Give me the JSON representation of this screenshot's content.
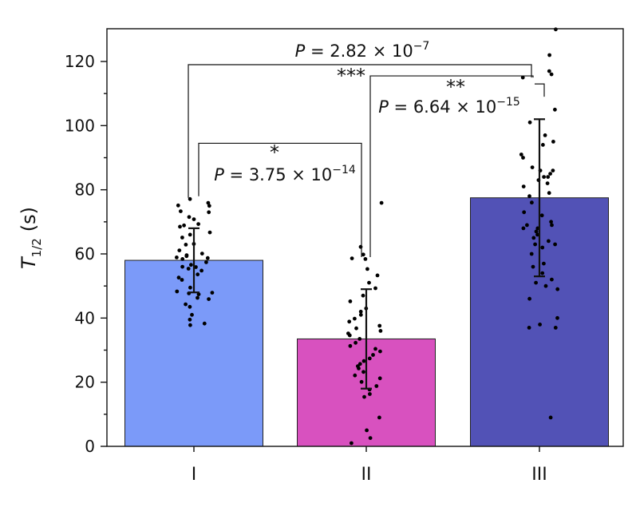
{
  "chart_data": {
    "type": "bar",
    "categories": [
      "I",
      "II",
      "III"
    ],
    "ylabel_main": "T",
    "ylabel_sub": "1/2",
    "ylabel_unit": "(s)",
    "ylim": [
      0,
      130
    ],
    "yticks": [
      0,
      20,
      40,
      60,
      80,
      100,
      120
    ],
    "yticks_minor": [
      10,
      30,
      50,
      70,
      90,
      110
    ],
    "grid": false,
    "legend": "none",
    "colors": [
      "#7b9af9",
      "#d851bf",
      "#5252b6"
    ],
    "bars": [
      {
        "category": "I",
        "mean": 58,
        "err_low": 48,
        "err_high": 68
      },
      {
        "category": "II",
        "mean": 33.5,
        "err_low": 18,
        "err_high": 49
      },
      {
        "category": "III",
        "mean": 77.5,
        "err_low": 53,
        "err_high": 102
      }
    ],
    "points": [
      [
        75.9,
        75.0,
        75.1,
        77.1,
        73.0,
        73.3,
        71.5,
        70.8,
        69.3,
        68.9,
        68.5,
        66.7,
        66.0,
        65.1,
        63.1,
        62.9,
        61.1,
        60.1,
        59.6,
        59.3,
        58.9,
        58.7,
        58.4,
        57.4,
        56.6,
        56.0,
        55.9,
        55.4,
        54.8,
        53.6,
        52.6,
        51.9,
        49.5,
        48.3,
        47.9,
        47.7,
        47.4,
        46.3,
        45.9,
        44.3,
        43.5,
        41.0,
        39.5,
        38.3,
        37.8
      ],
      [
        75.9,
        62.2,
        59.8,
        58.6,
        58.4,
        55.3,
        53.3,
        51.0,
        49.3,
        47.0,
        45.2,
        43.0,
        42.0,
        41.0,
        39.8,
        38.9,
        37.6,
        36.8,
        36.0,
        35.2,
        34.6,
        33.5,
        32.3,
        31.3,
        30.4,
        29.6,
        28.5,
        27.4,
        26.6,
        25.7,
        25.0,
        24.3,
        23.2,
        22.1,
        21.2,
        20.1,
        18.8,
        17.7,
        16.3,
        15.4,
        9.0,
        5.0,
        2.6,
        1.0
      ],
      [
        130,
        122,
        117,
        116,
        115,
        105,
        101,
        97,
        95,
        94,
        91,
        90,
        87,
        86,
        86,
        85,
        84,
        84,
        83,
        82,
        81,
        79,
        78,
        76,
        73,
        72,
        70,
        69,
        69,
        68,
        68,
        67,
        66,
        65,
        64,
        63,
        63,
        62,
        60,
        57,
        56,
        54,
        52,
        51,
        50,
        49,
        46,
        40,
        38,
        37,
        37,
        9
      ]
    ],
    "comparisons": [
      {
        "from": "I",
        "to": "III",
        "y": 119,
        "stars": "",
        "label": "P = 2.82 × 10",
        "exponent": "−7"
      },
      {
        "from": "II",
        "to": "III",
        "y": 115.5,
        "stars": "***",
        "label": "",
        "exponent": ""
      },
      {
        "from": "III",
        "to": "III",
        "y": 113,
        "stars": "**",
        "label": "P = 6.64 × 10",
        "exponent": "−15"
      },
      {
        "from": "I",
        "to": "II",
        "y": 94.5,
        "stars": "*",
        "label": "P = 3.75 × 10",
        "exponent": "−14"
      }
    ]
  }
}
